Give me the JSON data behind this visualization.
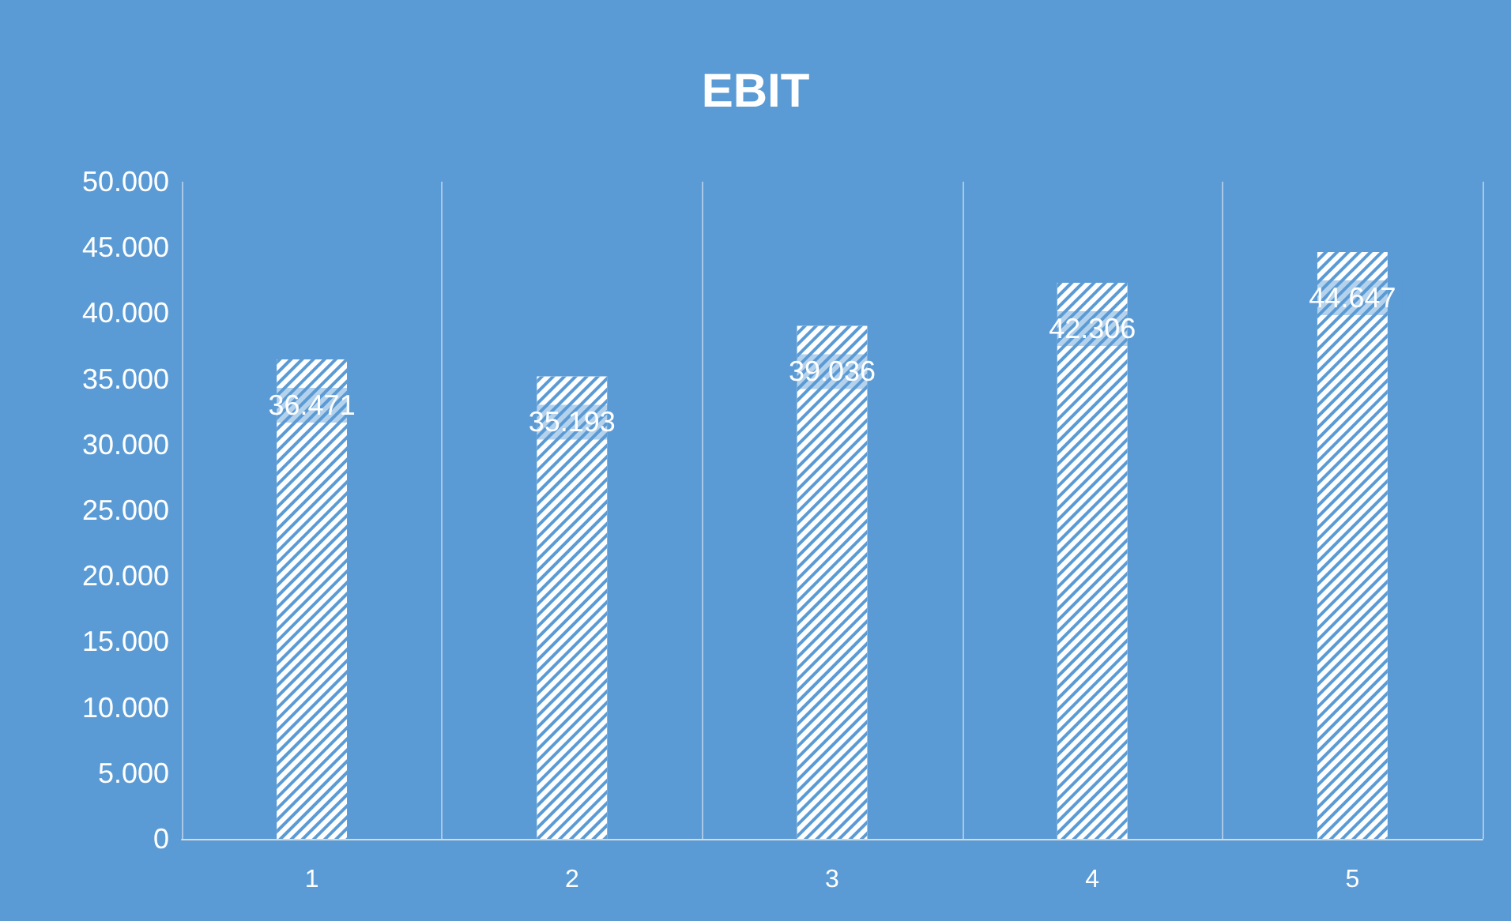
{
  "chart_data": {
    "type": "bar",
    "title": "EBIT",
    "categories": [
      "1",
      "2",
      "3",
      "4",
      "5"
    ],
    "series": [
      {
        "color": "#ffffff",
        "values": [
          36471,
          35193,
          39036,
          42306,
          44647
        ],
        "value_labels": [
          "36.471",
          "35.193",
          "39.036",
          "42.306",
          "44.647"
        ]
      }
    ],
    "ylim": [
      0,
      50000
    ],
    "yticks": [
      0,
      {
        "value": 5000,
        "label": "5.000"
      },
      {
        "value": 10000,
        "label": "10.000"
      },
      {
        "value": 15000,
        "label": "15.000"
      },
      {
        "value": 20000,
        "label": "20.000"
      },
      {
        "value": 25000,
        "label": "25.000"
      },
      {
        "value": 30000,
        "label": "30.000"
      },
      {
        "value": 35000,
        "label": "35.000"
      },
      {
        "value": 40000,
        "label": "40.000"
      },
      {
        "value": 45000,
        "label": "45.000"
      },
      {
        "value": 50000,
        "label": "50.000"
      }
    ],
    "grid": "x"
  }
}
